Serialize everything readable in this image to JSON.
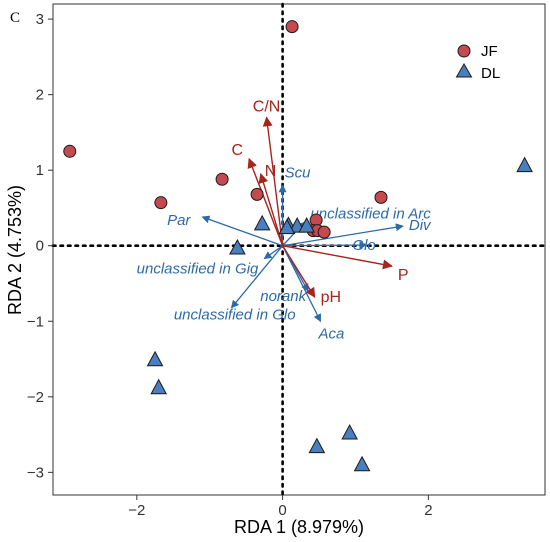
{
  "chart_data": {
    "type": "scatter",
    "panel_label": "C",
    "xlabel": "RDA 1 (8.979%)",
    "ylabel": "RDA 2 (4.753%)",
    "xlim": [
      -3.15,
      3.6
    ],
    "ylim": [
      -3.3,
      3.2
    ],
    "x_ticks": [
      -2,
      0,
      2
    ],
    "y_ticks": [
      -3,
      -2,
      -1,
      0,
      1,
      2,
      3
    ],
    "legend": {
      "position": "top-right",
      "entries": [
        {
          "label": "JF",
          "shape": "circle",
          "color": "#c44a4f"
        },
        {
          "label": "DL",
          "shape": "triangle",
          "color": "#4a7fbf"
        }
      ]
    },
    "series": [
      {
        "name": "JF",
        "shape": "circle",
        "color": "#c44a4f",
        "points": [
          [
            -2.92,
            1.25
          ],
          [
            0.13,
            2.9
          ],
          [
            -1.67,
            0.57
          ],
          [
            -0.83,
            0.88
          ],
          [
            -0.35,
            0.68
          ],
          [
            1.35,
            0.64
          ],
          [
            0.46,
            0.34
          ],
          [
            0.42,
            0.2
          ],
          [
            0.48,
            0.2
          ],
          [
            0.57,
            0.18
          ]
        ]
      },
      {
        "name": "DL",
        "shape": "triangle",
        "color": "#4a7fbf",
        "points": [
          [
            3.32,
            1.06
          ],
          [
            -0.28,
            0.29
          ],
          [
            0.08,
            0.27
          ],
          [
            0.2,
            0.26
          ],
          [
            0.33,
            0.26
          ],
          [
            0.06,
            0.24
          ],
          [
            -0.62,
            -0.03
          ],
          [
            -1.75,
            -1.51
          ],
          [
            -1.7,
            -1.88
          ],
          [
            0.47,
            -2.66
          ],
          [
            0.92,
            -2.48
          ],
          [
            1.09,
            -2.9
          ]
        ]
      }
    ],
    "environmental_vectors": {
      "color": "#a6251e",
      "items": [
        {
          "label": "C/N",
          "x": -0.22,
          "y": 1.7
        },
        {
          "label": "C",
          "x": -0.46,
          "y": 1.15
        },
        {
          "label": "N",
          "x": -0.3,
          "y": 0.95
        },
        {
          "label": "P",
          "x": 1.5,
          "y": -0.27
        },
        {
          "label": "pH",
          "x": 0.44,
          "y": -0.68
        }
      ]
    },
    "taxa_vectors": {
      "color": "#2d6aa8",
      "items": [
        {
          "label": "Scu",
          "x": 0.0,
          "y": 0.8
        },
        {
          "label": "unclassified in Arc",
          "x": 0.3,
          "y": 0.31
        },
        {
          "label": "Div",
          "x": 1.65,
          "y": 0.26
        },
        {
          "label": "Glo",
          "x": 1.15,
          "y": 0.01
        },
        {
          "label": "Par",
          "x": -1.1,
          "y": 0.38
        },
        {
          "label": "unclassified in Gig",
          "x": -0.25,
          "y": -0.17
        },
        {
          "label": "norank",
          "x": 0.35,
          "y": -0.6
        },
        {
          "label": "unclassified in Glo",
          "x": -0.7,
          "y": -0.82
        },
        {
          "label": "Aca",
          "x": 0.52,
          "y": -1.0
        }
      ]
    }
  }
}
